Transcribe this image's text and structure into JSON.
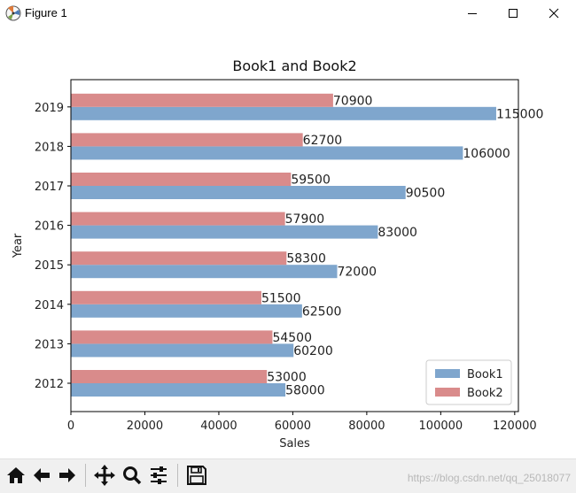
{
  "window": {
    "title": "Figure 1",
    "app_icon": "matplotlib-icon",
    "controls": [
      "minimize-icon",
      "maximize-icon",
      "close-icon"
    ]
  },
  "toolbar": {
    "icons": [
      "home-icon",
      "back-arrow-icon",
      "forward-arrow-icon",
      "pan-icon",
      "zoom-icon",
      "configure-subplots-icon",
      "save-icon"
    ]
  },
  "watermark": "https://blog.csdn.net/qq_25018077",
  "chart_data": {
    "type": "bar",
    "orientation": "horizontal",
    "title": "Book1 and Book2",
    "xlabel": "Sales",
    "ylabel": "Year",
    "categories": [
      "2012",
      "2013",
      "2014",
      "2015",
      "2016",
      "2017",
      "2018",
      "2019"
    ],
    "series": [
      {
        "name": "Book1",
        "color": "#7fa6cd",
        "values": [
          58000,
          60200,
          62500,
          72000,
          83000,
          90500,
          106000,
          115000
        ]
      },
      {
        "name": "Book2",
        "color": "#d98b8b",
        "values": [
          53000,
          54500,
          51500,
          58300,
          57900,
          59500,
          62700,
          70900
        ]
      }
    ],
    "xlim": [
      0,
      121000
    ],
    "xticks": [
      0,
      20000,
      40000,
      60000,
      80000,
      100000,
      120000
    ],
    "grid": false,
    "legend": "lower-right"
  }
}
